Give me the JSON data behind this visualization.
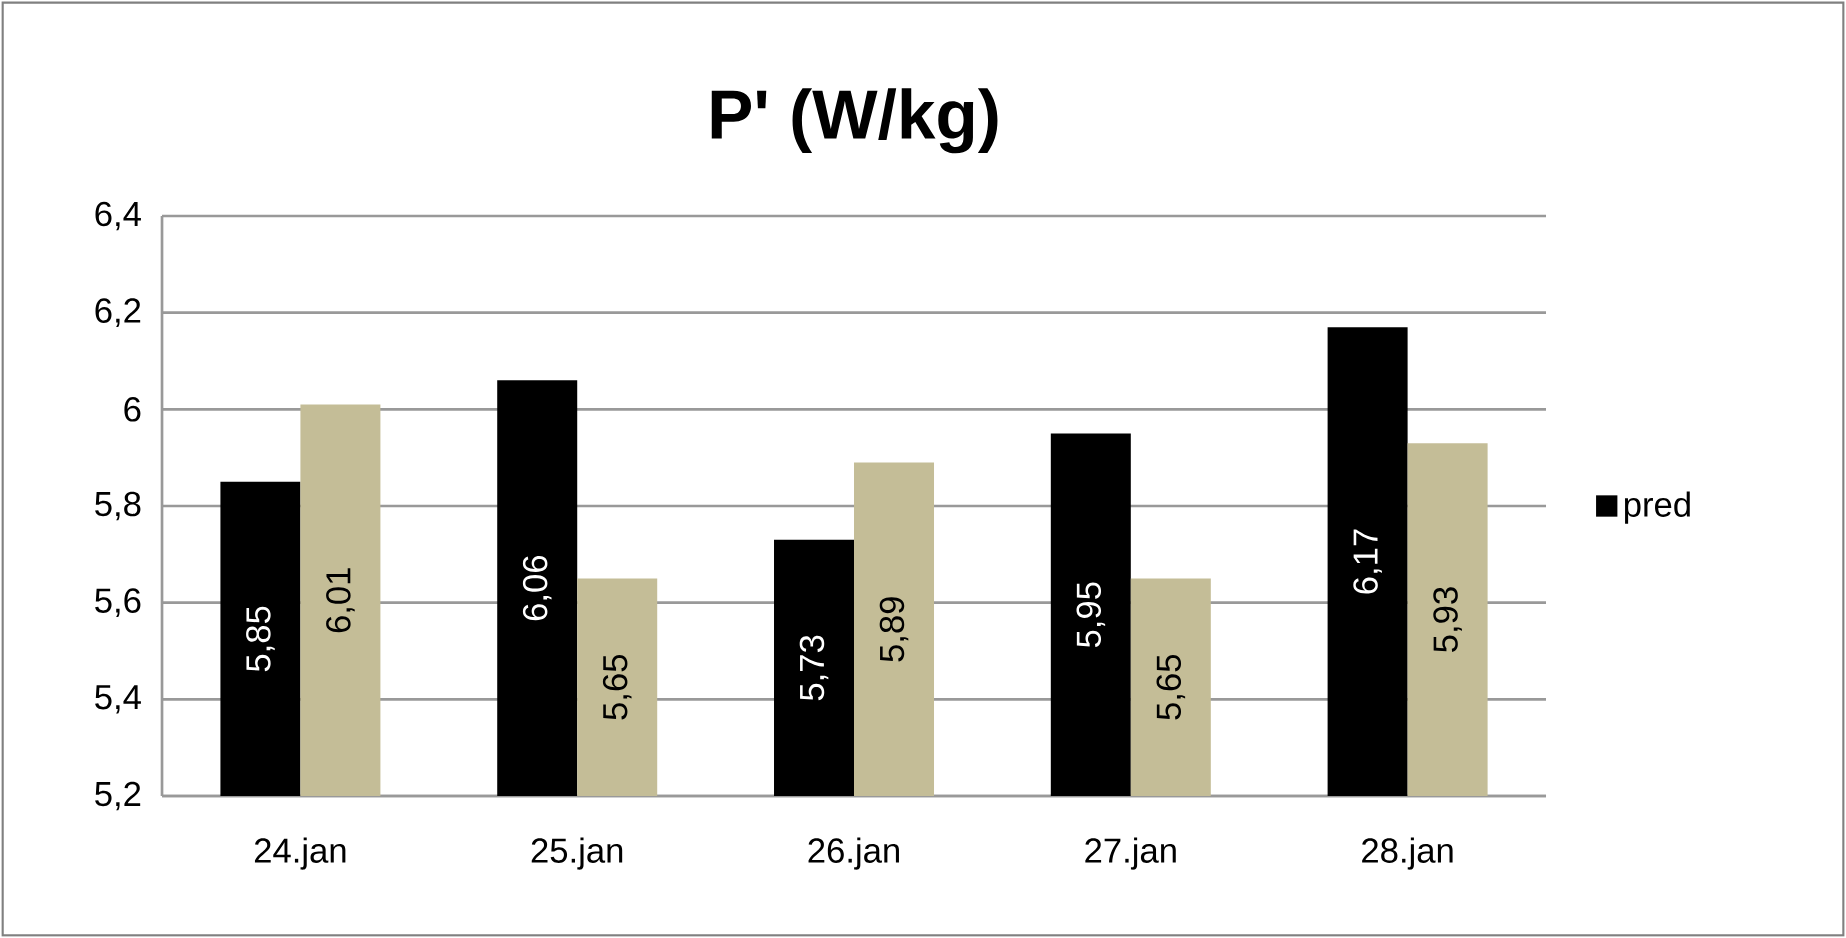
{
  "chart_data": {
    "type": "bar",
    "title": "P' (W/kg)",
    "categories": [
      "24.jan",
      "25.jan",
      "26.jan",
      "27.jan",
      "28.jan"
    ],
    "series": [
      {
        "name": "pred",
        "color": "#000000",
        "values": [
          5.85,
          6.06,
          5.73,
          5.95,
          6.17
        ],
        "value_labels": [
          "5,85",
          "6,06",
          "5,73",
          "5,95",
          "6,17"
        ]
      },
      {
        "color": "#c4bd97",
        "values": [
          6.01,
          5.65,
          5.89,
          5.65,
          5.93
        ],
        "value_labels": [
          "6,01",
          "5,65",
          "5,89",
          "5,65",
          "5,93"
        ]
      }
    ],
    "ylim": [
      5.2,
      6.4
    ],
    "yticks": [
      {
        "value": 5.2,
        "label": "5,2"
      },
      {
        "value": 5.4,
        "label": "5,4"
      },
      {
        "value": 5.6,
        "label": "5,6"
      },
      {
        "value": 5.8,
        "label": "5,8"
      },
      6,
      {
        "value": 6.2,
        "label": "6,2"
      },
      {
        "value": 6.4,
        "label": "6,4"
      }
    ],
    "grid": "y",
    "legend": "right"
  }
}
